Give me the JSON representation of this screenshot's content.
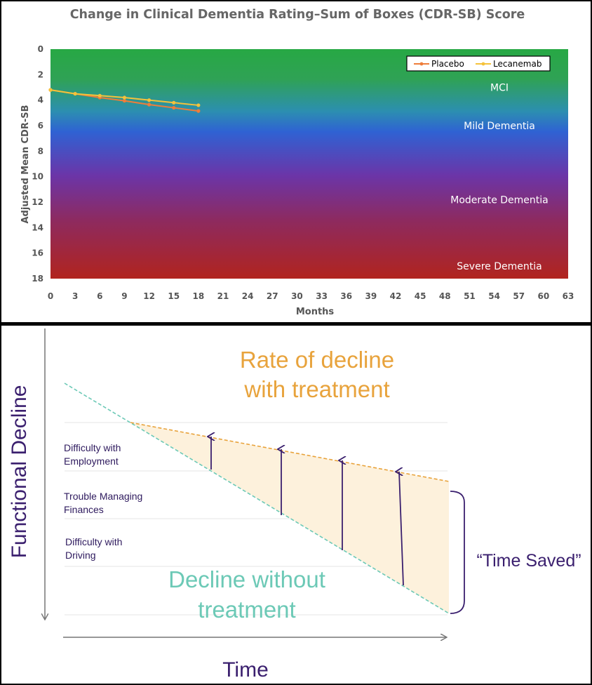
{
  "chart_data": [
    {
      "type": "line",
      "title": "Change in Clinical Dementia Rating–Sum of Boxes (CDR-SB) Score",
      "xlabel": "Months",
      "ylabel": "Adjusted Mean CDR-SB",
      "xlim": [
        0,
        63
      ],
      "ylim": [
        18,
        0
      ],
      "x_ticks": [
        0,
        3,
        6,
        9,
        12,
        15,
        18,
        21,
        24,
        27,
        30,
        33,
        36,
        39,
        42,
        45,
        48,
        51,
        54,
        57,
        60,
        63
      ],
      "y_ticks": [
        0,
        2,
        4,
        6,
        8,
        10,
        12,
        14,
        16,
        18
      ],
      "legend_position": "top-right",
      "series": [
        {
          "name": "Placebo",
          "color": "#ee7d3a",
          "x": [
            0,
            3,
            6,
            9,
            12,
            15,
            18
          ],
          "values": [
            3.2,
            3.5,
            3.8,
            4.05,
            4.35,
            4.6,
            4.85
          ]
        },
        {
          "name": "Lecanemab",
          "color": "#f5c23a",
          "x": [
            0,
            3,
            6,
            9,
            12,
            15,
            18
          ],
          "values": [
            3.2,
            3.5,
            3.65,
            3.8,
            4.0,
            4.2,
            4.4
          ]
        }
      ],
      "zones": [
        {
          "label": "MCI",
          "y": 3
        },
        {
          "label": "Mild Dementia",
          "y": 6
        },
        {
          "label": "Moderate Dementia",
          "y": 11.8
        },
        {
          "label": "Severe Dementia",
          "y": 17
        }
      ]
    },
    {
      "type": "diagram",
      "xlabel": "Time",
      "ylabel": "Functional Decline",
      "treatment_label_line1": "Rate of decline",
      "treatment_label_line2": "with treatment",
      "untreated_label_line1": "Decline without",
      "untreated_label_line2": "treatment",
      "time_saved_label": "“Time Saved”",
      "levels": [
        {
          "line1": "Difficulty with",
          "line2": "Employment"
        },
        {
          "line1": "Trouble Managing",
          "line2": "Finances"
        },
        {
          "line1": "Difficulty with",
          "line2": "Driving"
        }
      ]
    }
  ]
}
